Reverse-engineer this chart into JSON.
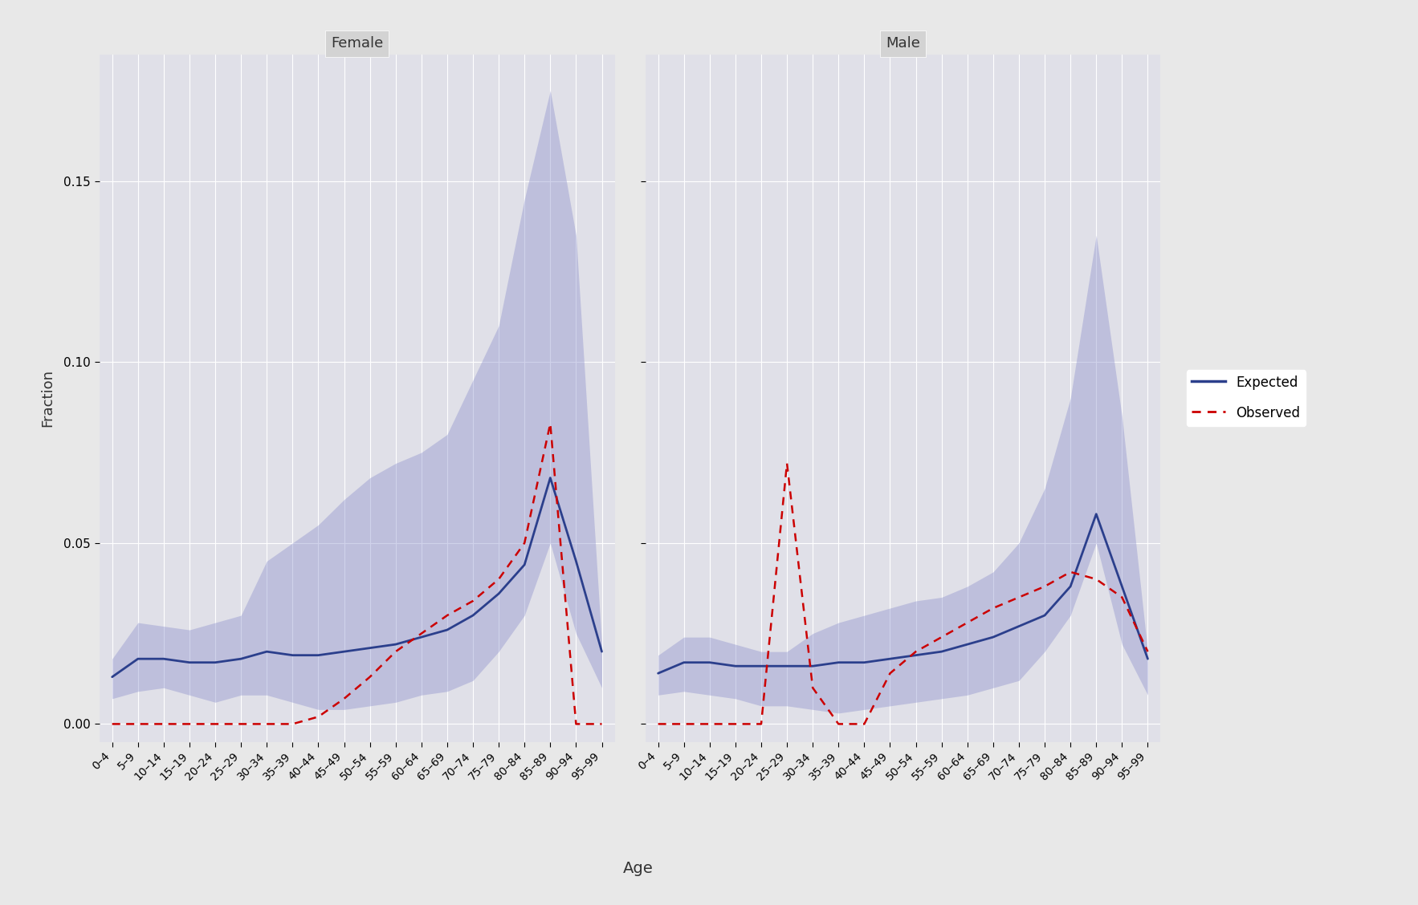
{
  "age_labels": [
    "0–4",
    "5–9",
    "10–14",
    "15–19",
    "20–24",
    "25–29",
    "30–34",
    "35–39",
    "40–44",
    "45–49",
    "50–54",
    "55–59",
    "60–64",
    "65–69",
    "70–74",
    "75–79",
    "80–84",
    "85–89",
    "90–94",
    "95–99"
  ],
  "female": {
    "expected": [
      0.013,
      0.018,
      0.018,
      0.017,
      0.017,
      0.018,
      0.02,
      0.019,
      0.019,
      0.02,
      0.021,
      0.022,
      0.024,
      0.026,
      0.03,
      0.036,
      0.044,
      0.068,
      0.045,
      0.02
    ],
    "expected_low": [
      0.007,
      0.009,
      0.01,
      0.008,
      0.006,
      0.008,
      0.008,
      0.006,
      0.004,
      0.004,
      0.005,
      0.006,
      0.008,
      0.009,
      0.012,
      0.02,
      0.03,
      0.05,
      0.025,
      0.01
    ],
    "expected_high": [
      0.018,
      0.028,
      0.027,
      0.026,
      0.028,
      0.03,
      0.045,
      0.05,
      0.055,
      0.062,
      0.068,
      0.072,
      0.075,
      0.08,
      0.095,
      0.11,
      0.145,
      0.175,
      0.135,
      0.022
    ],
    "observed": [
      0.0,
      0.0,
      0.0,
      0.0,
      0.0,
      0.0,
      0.0,
      0.0,
      0.002,
      0.007,
      0.013,
      0.02,
      0.025,
      0.03,
      0.034,
      0.04,
      0.05,
      0.083,
      0.0,
      0.0
    ]
  },
  "male": {
    "expected": [
      0.014,
      0.017,
      0.017,
      0.016,
      0.016,
      0.016,
      0.016,
      0.017,
      0.017,
      0.018,
      0.019,
      0.02,
      0.022,
      0.024,
      0.027,
      0.03,
      0.038,
      0.058,
      0.038,
      0.018
    ],
    "expected_low": [
      0.008,
      0.009,
      0.008,
      0.007,
      0.005,
      0.005,
      0.004,
      0.003,
      0.004,
      0.005,
      0.006,
      0.007,
      0.008,
      0.01,
      0.012,
      0.02,
      0.03,
      0.05,
      0.022,
      0.008
    ],
    "expected_high": [
      0.019,
      0.024,
      0.024,
      0.022,
      0.02,
      0.02,
      0.025,
      0.028,
      0.03,
      0.032,
      0.034,
      0.035,
      0.038,
      0.042,
      0.05,
      0.065,
      0.09,
      0.135,
      0.085,
      0.02
    ],
    "observed": [
      0.0,
      0.0,
      0.0,
      0.0,
      0.0,
      0.072,
      0.01,
      0.0,
      0.0,
      0.014,
      0.02,
      0.024,
      0.028,
      0.032,
      0.035,
      0.038,
      0.042,
      0.04,
      0.035,
      0.02
    ]
  },
  "title_female": "Female",
  "title_male": "Male",
  "xlabel": "Age",
  "ylabel": "Fraction",
  "ylim": [
    -0.005,
    0.185
  ],
  "yticks": [
    0.0,
    0.05,
    0.1,
    0.15
  ],
  "expected_color": "#2B3F8C",
  "observed_color": "#CC0000",
  "fill_color": "#8B8FCC",
  "fill_alpha": 0.4,
  "bg_color": "#E8E8E8",
  "panel_bg_color": "#E0E0E8",
  "grid_color": "#FFFFFF",
  "strip_bg_color": "#D3D3D3",
  "strip_text_color": "#333333"
}
